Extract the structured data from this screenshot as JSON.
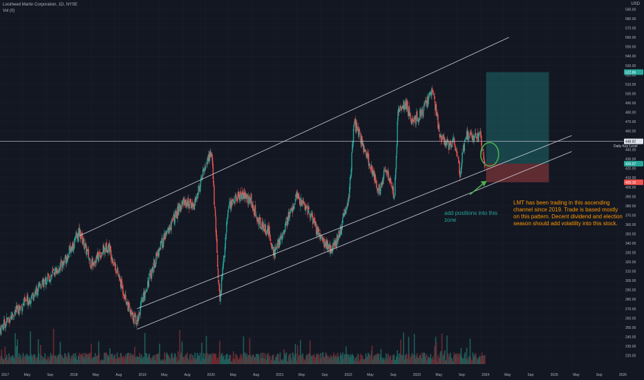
{
  "header": {
    "symbol_line": "Lockheed Martin Corporation, 1D, NYSE",
    "vol_line": "Vol (0)"
  },
  "currency": "USD",
  "annotations": {
    "zone_note": "add positions into this zone",
    "thesis": "LMT has been trading in this ascending channel since 2019. Trade is based mostly on  this pattern.  Decent dividend and  election season should add volatility into this stock.",
    "key_level_label": "Daily Key Level"
  },
  "colors": {
    "background": "#131722",
    "up": "#26a69a",
    "down": "#ef5350",
    "annotation_green": "#26a69a",
    "annotation_orange": "#ff9800",
    "volume": "#ff9800"
  },
  "price_badges": {
    "target": "522.86",
    "key_level": "448.82",
    "current": "425.07",
    "stop": "405.16"
  },
  "chart_data": {
    "type": "candlestick",
    "title": "Lockheed Martin Corporation, 1D, NYSE",
    "y_axis": {
      "side": "right",
      "ylim": [
        210,
        600
      ],
      "ticks": [
        220,
        230,
        240,
        250,
        260,
        270,
        280,
        290,
        300,
        310,
        320,
        330,
        340,
        350,
        360,
        370,
        380,
        390,
        400,
        410,
        420,
        430,
        440,
        450,
        460,
        470,
        480,
        490,
        500,
        510,
        520,
        530,
        540,
        550,
        560,
        570,
        580,
        590
      ]
    },
    "x_axis": {
      "xlim": [
        "2017-01-01",
        "2026-01-31"
      ],
      "ticks": [
        {
          "date": "2017-01-01",
          "label": "2017"
        },
        {
          "date": "2017-05-01",
          "label": "May"
        },
        {
          "date": "2017-09-01",
          "label": "Sep"
        },
        {
          "date": "2018-01-01",
          "label": "2018"
        },
        {
          "date": "2018-05-01",
          "label": "May"
        },
        {
          "date": "2018-09-01",
          "label": "Aug"
        },
        {
          "date": "2019-01-01",
          "label": "2019"
        },
        {
          "date": "2019-05-01",
          "label": "May"
        },
        {
          "date": "2019-09-01",
          "label": "Aug"
        },
        {
          "date": "2020-01-01",
          "label": "2020"
        },
        {
          "date": "2020-05-01",
          "label": "May"
        },
        {
          "date": "2020-09-01",
          "label": "Aug"
        },
        {
          "date": "2021-01-01",
          "label": "2021"
        },
        {
          "date": "2021-05-01",
          "label": "May"
        },
        {
          "date": "2021-09-01",
          "label": "Sep"
        },
        {
          "date": "2022-01-01",
          "label": "2022"
        },
        {
          "date": "2022-05-01",
          "label": "May"
        },
        {
          "date": "2022-09-01",
          "label": "Sep"
        },
        {
          "date": "2023-01-01",
          "label": "2023"
        },
        {
          "date": "2023-05-01",
          "label": "May"
        },
        {
          "date": "2023-09-01",
          "label": "Sep"
        },
        {
          "date": "2024-01-01",
          "label": "2024"
        },
        {
          "date": "2024-05-01",
          "label": "May"
        },
        {
          "date": "2024-09-01",
          "label": "Sep"
        },
        {
          "date": "2025-01-01",
          "label": "2025"
        },
        {
          "date": "2025-05-01",
          "label": "May"
        },
        {
          "date": "2025-09-01",
          "label": "Sep"
        },
        {
          "date": "2026-01-01",
          "label": "2026"
        }
      ]
    },
    "price_path": [
      [
        "2017-01-01",
        248
      ],
      [
        "2017-03-01",
        262
      ],
      [
        "2017-06-01",
        280
      ],
      [
        "2017-09-01",
        300
      ],
      [
        "2017-12-01",
        318
      ],
      [
        "2018-03-01",
        352
      ],
      [
        "2018-05-01",
        318
      ],
      [
        "2018-08-01",
        338
      ],
      [
        "2018-10-01",
        300
      ],
      [
        "2018-12-01",
        262
      ],
      [
        "2019-01-01",
        258
      ],
      [
        "2019-03-01",
        300
      ],
      [
        "2019-05-01",
        335
      ],
      [
        "2019-07-01",
        360
      ],
      [
        "2019-09-01",
        385
      ],
      [
        "2019-11-01",
        380
      ],
      [
        "2020-01-01",
        425
      ],
      [
        "2020-02-01",
        438
      ],
      [
        "2020-03-15",
        278
      ],
      [
        "2020-05-01",
        380
      ],
      [
        "2020-07-01",
        392
      ],
      [
        "2020-09-01",
        385
      ],
      [
        "2020-10-01",
        365
      ],
      [
        "2020-12-01",
        352
      ],
      [
        "2021-01-01",
        328
      ],
      [
        "2021-03-01",
        360
      ],
      [
        "2021-05-01",
        390
      ],
      [
        "2021-07-01",
        375
      ],
      [
        "2021-09-01",
        345
      ],
      [
        "2021-11-01",
        332
      ],
      [
        "2021-12-15",
        352
      ],
      [
        "2022-02-01",
        390
      ],
      [
        "2022-03-01",
        470
      ],
      [
        "2022-04-15",
        445
      ],
      [
        "2022-06-01",
        420
      ],
      [
        "2022-07-15",
        395
      ],
      [
        "2022-08-15",
        420
      ],
      [
        "2022-10-01",
        390
      ],
      [
        "2022-10-20",
        480
      ],
      [
        "2022-12-01",
        490
      ],
      [
        "2023-01-01",
        470
      ],
      [
        "2023-03-01",
        480
      ],
      [
        "2023-04-20",
        505
      ],
      [
        "2023-06-01",
        455
      ],
      [
        "2023-07-15",
        445
      ],
      [
        "2023-08-15",
        450
      ],
      [
        "2023-09-15",
        415
      ],
      [
        "2023-10-15",
        455
      ],
      [
        "2023-12-01",
        455
      ],
      [
        "2024-01-01",
        455
      ],
      [
        "2024-01-25",
        425
      ]
    ],
    "channel": {
      "upper": [
        [
          "2018-03-01",
          348
        ],
        [
          "2024-06-01",
          560
        ]
      ],
      "middle": [
        [
          "2019-01-01",
          270
        ],
        [
          "2025-05-01",
          455
        ]
      ],
      "lower": [
        [
          "2019-01-01",
          248
        ],
        [
          "2025-05-01",
          438
        ]
      ]
    },
    "key_level": 448.82,
    "position": {
      "entry": 425.07,
      "target": 522.86,
      "stop": 405.16,
      "start": "2024-02-01",
      "end": "2024-12-31"
    }
  }
}
